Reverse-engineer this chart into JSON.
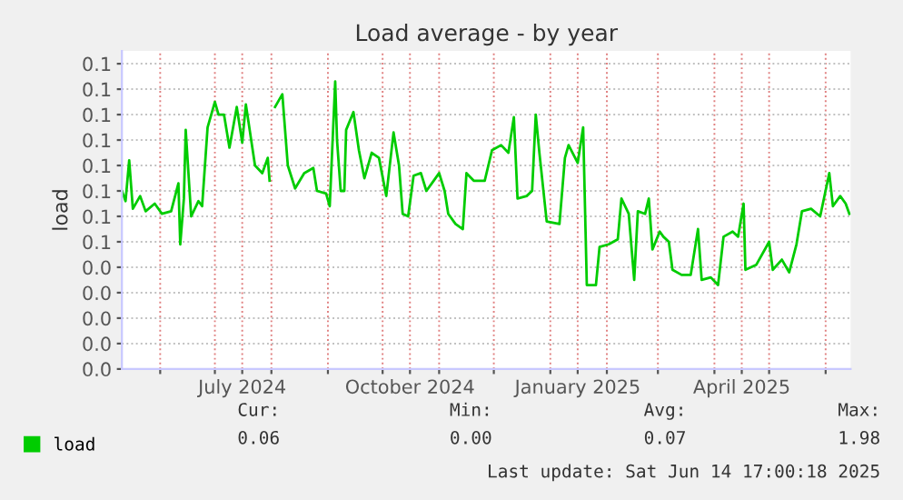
{
  "chart_data": {
    "type": "line",
    "title": "Load average - by year",
    "ylabel": "load",
    "x": [
      "2024-05-11",
      "2024-05-13",
      "2024-05-15",
      "2024-05-17",
      "2024-05-21",
      "2024-05-24",
      "2024-05-29",
      "2024-06-02",
      "2024-06-07",
      "2024-06-11",
      "2024-06-12",
      "2024-06-14",
      "2024-06-15",
      "2024-06-18",
      "2024-06-22",
      "2024-06-24",
      "2024-06-27",
      "2024-07-01",
      "2024-07-03",
      "2024-07-06",
      "2024-07-09",
      "2024-07-13",
      "2024-07-16",
      "2024-07-18",
      "2024-07-23",
      "2024-07-27",
      "2024-07-30",
      "2024-07-31",
      "2024-08-02",
      "2024-08-03",
      "2024-08-07",
      "2024-08-10",
      "2024-08-14",
      "2024-08-19",
      "2024-08-24",
      "2024-08-26",
      "2024-08-31",
      "2024-09-02",
      "2024-09-05",
      "2024-09-06",
      "2024-09-08",
      "2024-09-10",
      "2024-09-11",
      "2024-09-15",
      "2024-09-18",
      "2024-09-21",
      "2024-09-25",
      "2024-09-29",
      "2024-10-03",
      "2024-10-07",
      "2024-10-10",
      "2024-10-12",
      "2024-10-15",
      "2024-10-18",
      "2024-10-22",
      "2024-10-25",
      "2024-10-29",
      "2024-11-01",
      "2024-11-04",
      "2024-11-06",
      "2024-11-10",
      "2024-11-14",
      "2024-11-16",
      "2024-11-20",
      "2024-11-26",
      "2024-11-30",
      "2024-12-05",
      "2024-12-09",
      "2024-12-12",
      "2024-12-14",
      "2024-12-19",
      "2024-12-22",
      "2024-12-24",
      "2024-12-26",
      "2024-12-30",
      "2025-01-06",
      "2025-01-09",
      "2025-01-11",
      "2025-01-16",
      "2025-01-19",
      "2025-01-21",
      "2025-01-26",
      "2025-01-28",
      "2025-02-02",
      "2025-02-07",
      "2025-02-09",
      "2025-02-13",
      "2025-02-16",
      "2025-02-18",
      "2025-02-22",
      "2025-02-24",
      "2025-02-26",
      "2025-03-02",
      "2025-03-04",
      "2025-03-07",
      "2025-03-09",
      "2025-03-14",
      "2025-03-19",
      "2025-03-23",
      "2025-03-25",
      "2025-03-30",
      "2025-04-03",
      "2025-04-06",
      "2025-04-11",
      "2025-04-14",
      "2025-04-17",
      "2025-04-18",
      "2025-04-24",
      "2025-05-01",
      "2025-05-03",
      "2025-05-08",
      "2025-05-12",
      "2025-05-16",
      "2025-05-19",
      "2025-05-24",
      "2025-05-29",
      "2025-06-03",
      "2025-06-05",
      "2025-06-09",
      "2025-06-12",
      "2025-06-14"
    ],
    "series": [
      {
        "name": "load",
        "color": "#00cc00",
        "values": [
          0.07,
          0.066,
          0.082,
          0.063,
          0.068,
          0.062,
          0.065,
          0.061,
          0.062,
          0.073,
          0.049,
          0.067,
          0.094,
          0.06,
          0.066,
          0.064,
          0.095,
          0.105,
          0.1,
          0.1,
          0.087,
          0.103,
          0.089,
          0.104,
          0.08,
          0.077,
          0.083,
          0.074,
          null,
          0.103,
          0.108,
          0.08,
          0.071,
          0.077,
          0.079,
          0.07,
          0.069,
          0.064,
          0.113,
          0.09,
          0.07,
          0.07,
          0.094,
          0.101,
          0.086,
          0.075,
          0.085,
          0.083,
          0.068,
          0.093,
          0.08,
          0.061,
          0.06,
          0.076,
          0.077,
          0.07,
          0.074,
          0.077,
          0.07,
          0.061,
          0.057,
          0.055,
          0.077,
          0.074,
          0.074,
          0.086,
          0.088,
          0.085,
          0.099,
          0.067,
          0.068,
          0.07,
          0.1,
          0.085,
          0.058,
          0.057,
          0.083,
          0.088,
          0.081,
          0.095,
          0.033,
          0.033,
          0.048,
          0.049,
          0.051,
          0.067,
          0.061,
          0.035,
          0.062,
          0.061,
          0.067,
          0.047,
          0.054,
          0.052,
          0.05,
          0.039,
          0.037,
          0.037,
          0.055,
          0.035,
          0.036,
          0.033,
          0.052,
          0.054,
          0.052,
          0.065,
          0.039,
          0.041,
          0.05,
          0.039,
          0.043,
          0.038,
          0.049,
          0.062,
          0.063,
          0.06,
          0.077,
          0.064,
          0.068,
          0.065,
          0.061
        ]
      }
    ],
    "xlim": [
      "2024-05-11",
      "2025-06-14T17:00"
    ],
    "xticks": [
      {
        "value": "2024-06-01",
        "label": null
      },
      {
        "value": "2024-07-01",
        "label": null
      },
      {
        "value": "2024-07-16",
        "label": "July 2024"
      },
      {
        "value": "2024-08-01",
        "label": null
      },
      {
        "value": "2024-09-01",
        "label": null
      },
      {
        "value": "2024-10-01",
        "label": null
      },
      {
        "value": "2024-10-16",
        "label": "October 2024"
      },
      {
        "value": "2024-11-01",
        "label": null
      },
      {
        "value": "2024-12-01",
        "label": null
      },
      {
        "value": "2025-01-01",
        "label": null
      },
      {
        "value": "2025-01-16",
        "label": "January 2025"
      },
      {
        "value": "2025-02-01",
        "label": null
      },
      {
        "value": "2025-03-01",
        "label": null
      },
      {
        "value": "2025-04-01",
        "label": null
      },
      {
        "value": "2025-04-16",
        "label": "April 2025"
      },
      {
        "value": "2025-05-01",
        "label": null
      },
      {
        "value": "2025-06-01",
        "label": null
      }
    ],
    "ylim": [
      0,
      0.125
    ],
    "yticks": [
      {
        "value": 0,
        "label": "0.0"
      },
      {
        "value": 0.01,
        "label": "0.0"
      },
      {
        "value": 0.02,
        "label": "0.0"
      },
      {
        "value": 0.03,
        "label": "0.0"
      },
      {
        "value": 0.04,
        "label": "0.0"
      },
      {
        "value": 0.05,
        "label": "0.1"
      },
      {
        "value": 0.06,
        "label": "0.1"
      },
      {
        "value": 0.07,
        "label": "0.1"
      },
      {
        "value": 0.08,
        "label": "0.1"
      },
      {
        "value": 0.09,
        "label": "0.1"
      },
      {
        "value": 0.1,
        "label": "0.1"
      },
      {
        "value": 0.11,
        "label": "0.1"
      },
      {
        "value": 0.12,
        "label": "0.1"
      }
    ],
    "grid": true,
    "legend": "bottom left",
    "marker": "none",
    "line_style": "solid",
    "annotations": [
      "Cur:",
      "Min:",
      "Avg:",
      "Max:",
      "0.06",
      "0.00",
      "0.07",
      "1.98",
      "Last update: Sat Jun 14 17:00:18 2025"
    ]
  }
}
